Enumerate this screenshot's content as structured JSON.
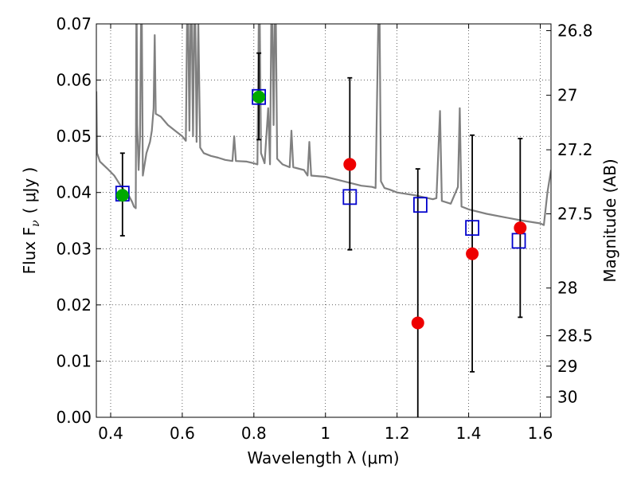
{
  "chart_data": {
    "type": "scatter",
    "xlabel": "Wavelength  λ (μm)",
    "ylabel": "Flux  F",
    "ylabel_sub": "ν",
    "ylabel_unit": "( μJy )",
    "y2label": "Magnitude (AB)",
    "xlim": [
      0.36,
      1.63
    ],
    "ylim": [
      0.0,
      0.07
    ],
    "grid": true,
    "x_ticks": [
      {
        "value": 0.4,
        "label": "0.4"
      },
      {
        "value": 0.6,
        "label": "0.6"
      },
      {
        "value": 0.8,
        "label": "0.8"
      },
      {
        "value": 1.0,
        "label": "1"
      },
      {
        "value": 1.2,
        "label": "1.2"
      },
      {
        "value": 1.4,
        "label": "1.4"
      },
      {
        "value": 1.6,
        "label": "1.6"
      }
    ],
    "y_ticks": [
      {
        "value": 0.0,
        "label": "0.00"
      },
      {
        "value": 0.01,
        "label": "0.01"
      },
      {
        "value": 0.02,
        "label": "0.02"
      },
      {
        "value": 0.03,
        "label": "0.03"
      },
      {
        "value": 0.04,
        "label": "0.04"
      },
      {
        "value": 0.05,
        "label": "0.05"
      },
      {
        "value": 0.06,
        "label": "0.06"
      },
      {
        "value": 0.07,
        "label": "0.07"
      }
    ],
    "y2_ticks": [
      {
        "flux": 0.0688,
        "label": "26.8"
      },
      {
        "flux": 0.0573,
        "label": "27"
      },
      {
        "flux": 0.0476,
        "label": "27.2"
      },
      {
        "flux": 0.0362,
        "label": "27.5"
      },
      {
        "flux": 0.023,
        "label": "28"
      },
      {
        "flux": 0.0145,
        "label": "28.5"
      },
      {
        "flux": 0.0091,
        "label": "29"
      },
      {
        "flux": 0.0036,
        "label": "30"
      }
    ],
    "series": [
      {
        "kind": "line",
        "color": "#808080",
        "points": [
          [
            0.36,
            0.058
          ],
          [
            0.362,
            0.047
          ],
          [
            0.37,
            0.0455
          ],
          [
            0.39,
            0.0443
          ],
          [
            0.41,
            0.043
          ],
          [
            0.43,
            0.041
          ],
          [
            0.45,
            0.0395
          ],
          [
            0.46,
            0.0383
          ],
          [
            0.465,
            0.0375
          ],
          [
            0.47,
            0.0372
          ],
          [
            0.472,
            0.08
          ],
          [
            0.474,
            0.052
          ],
          [
            0.478,
            0.044
          ],
          [
            0.482,
            0.05
          ],
          [
            0.486,
            0.08
          ],
          [
            0.49,
            0.043
          ],
          [
            0.5,
            0.047
          ],
          [
            0.51,
            0.049
          ],
          [
            0.515,
            0.051
          ],
          [
            0.52,
            0.055
          ],
          [
            0.523,
            0.068
          ],
          [
            0.526,
            0.054
          ],
          [
            0.54,
            0.0535
          ],
          [
            0.56,
            0.052
          ],
          [
            0.58,
            0.051
          ],
          [
            0.6,
            0.05
          ],
          [
            0.61,
            0.0492
          ],
          [
            0.615,
            0.08
          ],
          [
            0.62,
            0.051
          ],
          [
            0.625,
            0.08
          ],
          [
            0.63,
            0.05
          ],
          [
            0.635,
            0.08
          ],
          [
            0.64,
            0.049
          ],
          [
            0.645,
            0.07
          ],
          [
            0.65,
            0.048
          ],
          [
            0.66,
            0.047
          ],
          [
            0.68,
            0.0465
          ],
          [
            0.7,
            0.0462
          ],
          [
            0.72,
            0.0458
          ],
          [
            0.74,
            0.0456
          ],
          [
            0.745,
            0.05
          ],
          [
            0.75,
            0.0456
          ],
          [
            0.78,
            0.0455
          ],
          [
            0.8,
            0.0452
          ],
          [
            0.81,
            0.045
          ],
          [
            0.815,
            0.08
          ],
          [
            0.82,
            0.047
          ],
          [
            0.83,
            0.0452
          ],
          [
            0.84,
            0.055
          ],
          [
            0.845,
            0.045
          ],
          [
            0.85,
            0.08
          ],
          [
            0.855,
            0.052
          ],
          [
            0.86,
            0.08
          ],
          [
            0.865,
            0.046
          ],
          [
            0.88,
            0.045
          ],
          [
            0.9,
            0.0445
          ],
          [
            0.905,
            0.051
          ],
          [
            0.91,
            0.0445
          ],
          [
            0.94,
            0.044
          ],
          [
            0.95,
            0.043
          ],
          [
            0.955,
            0.049
          ],
          [
            0.96,
            0.043
          ],
          [
            1.0,
            0.0428
          ],
          [
            1.05,
            0.042
          ],
          [
            1.1,
            0.0412
          ],
          [
            1.13,
            0.041
          ],
          [
            1.14,
            0.0408
          ],
          [
            1.15,
            0.08
          ],
          [
            1.155,
            0.042
          ],
          [
            1.165,
            0.0408
          ],
          [
            1.18,
            0.0405
          ],
          [
            1.2,
            0.04
          ],
          [
            1.25,
            0.0395
          ],
          [
            1.3,
            0.0388
          ],
          [
            1.31,
            0.039
          ],
          [
            1.32,
            0.0545
          ],
          [
            1.325,
            0.0385
          ],
          [
            1.35,
            0.038
          ],
          [
            1.37,
            0.041
          ],
          [
            1.375,
            0.055
          ],
          [
            1.38,
            0.0375
          ],
          [
            1.4,
            0.037
          ],
          [
            1.45,
            0.0362
          ],
          [
            1.5,
            0.0356
          ],
          [
            1.55,
            0.035
          ],
          [
            1.6,
            0.0345
          ],
          [
            1.61,
            0.0342
          ],
          [
            1.62,
            0.04
          ],
          [
            1.63,
            0.044
          ]
        ]
      },
      {
        "name": "",
        "kind": "open-square",
        "color": "#0000cc",
        "x": [
          0.433,
          0.814,
          1.068,
          1.265,
          1.41,
          1.54
        ],
        "y": [
          0.0398,
          0.057,
          0.0392,
          0.0378,
          0.0337,
          0.0314
        ]
      },
      {
        "name": "",
        "kind": "filled-circle",
        "color": "#00aa00",
        "x": [
          0.433,
          0.814
        ],
        "y": [
          0.0395,
          0.057
        ],
        "err_low": [
          0.0323,
          0.0494
        ],
        "err_high": [
          0.047,
          0.0648
        ]
      },
      {
        "name": "",
        "kind": "filled-circle",
        "color": "#ee0000",
        "x": [
          1.068,
          1.258,
          1.41,
          1.544
        ],
        "y": [
          0.045,
          0.0168,
          0.0291,
          0.0337
        ],
        "err_low": [
          0.0298,
          0.0,
          0.0081,
          0.0178
        ],
        "err_high": [
          0.0604,
          0.0442,
          0.0502,
          0.0496
        ]
      }
    ]
  }
}
